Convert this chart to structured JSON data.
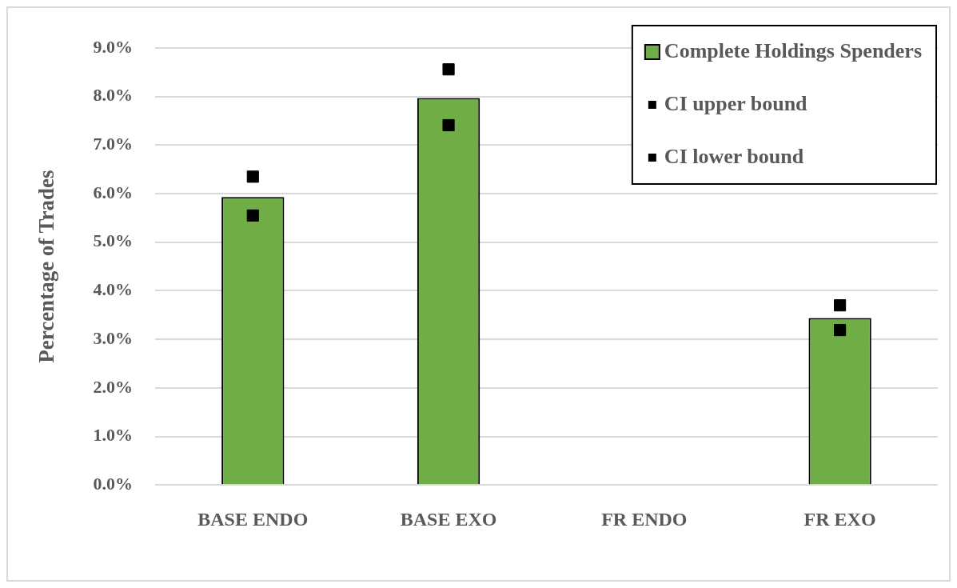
{
  "chart_data": {
    "type": "bar",
    "ylabel": "Percentage of Trades",
    "categories": [
      "BASE ENDO",
      "BASE EXO",
      "FR ENDO",
      "FR EXO"
    ],
    "series": [
      {
        "name": "Complete Holdings Spenders",
        "color": "#70ad47",
        "values": [
          5.93,
          7.97,
          null,
          3.44
        ]
      },
      {
        "name": "CI upper bound",
        "type": "scatter",
        "marker": "square",
        "color": "#000000",
        "x": [
          "BASE ENDO",
          "BASE EXO",
          "FR ENDO",
          "FR EXO"
        ],
        "values": [
          6.35,
          8.56,
          null,
          3.7
        ]
      },
      {
        "name": "CI lower bound",
        "type": "scatter",
        "marker": "square",
        "color": "#000000",
        "x": [
          "BASE ENDO",
          "BASE EXO",
          "FR ENDO",
          "FR EXO"
        ],
        "values": [
          5.55,
          7.41,
          null,
          3.19
        ]
      }
    ],
    "ylim": [
      0,
      9
    ],
    "yticks": [
      {
        "value": 0,
        "label": "0.0%"
      },
      {
        "value": 1,
        "label": "1.0%"
      },
      {
        "value": 2,
        "label": "2.0%"
      },
      {
        "value": 3,
        "label": "3.0%"
      },
      {
        "value": 4,
        "label": "4.0%"
      },
      {
        "value": 5,
        "label": "5.0%"
      },
      {
        "value": 6,
        "label": "6.0%"
      },
      {
        "value": 7,
        "label": "7.0%"
      },
      {
        "value": 8,
        "label": "8.0%"
      },
      {
        "value": 9,
        "label": "9.0%"
      }
    ],
    "grid": "y",
    "legend": "top right"
  }
}
